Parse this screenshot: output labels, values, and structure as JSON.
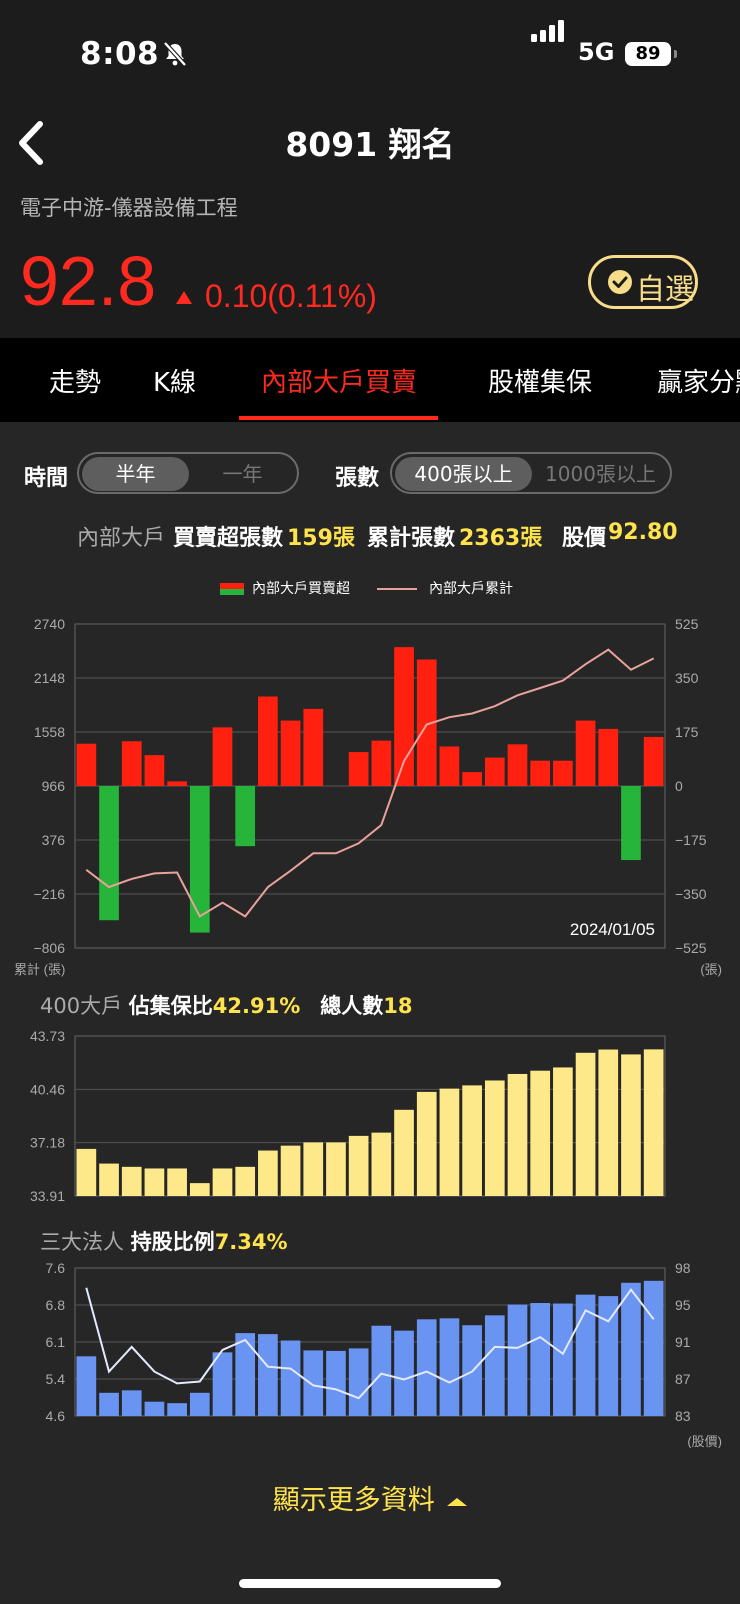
{
  "status_bar": {
    "time": "8:08",
    "network": "5G",
    "battery": "89"
  },
  "header": {
    "title": "8091 翔名",
    "category": "電子中游-儀器設備工程"
  },
  "quote": {
    "price": "92.8",
    "change": "0.10(0.11%)",
    "watch_label": "自選",
    "up_color": "#ff2a1f",
    "accent": "#f7dc8a"
  },
  "tabs": [
    {
      "label": "走勢",
      "active": false
    },
    {
      "label": "K線",
      "active": false
    },
    {
      "label": "內部大戶買賣",
      "active": true
    },
    {
      "label": "股權集保",
      "active": false
    },
    {
      "label": "贏家分點",
      "active": false
    }
  ],
  "filters": {
    "time_label": "時間",
    "time_options": [
      "半年",
      "一年"
    ],
    "time_selected": "半年",
    "lots_label": "張數",
    "lots_options": [
      "400張以上",
      "1000張以上"
    ],
    "lots_selected": "400張以上"
  },
  "summary": {
    "insider_label": "內部大戶",
    "net_label": "買賣超張數",
    "net_value": "159張",
    "cum_label": "累計張數",
    "cum_value": "2363張",
    "price_label": "股價",
    "price_value": "92.80"
  },
  "chart_data": [
    {
      "type": "bar",
      "legend": [
        "內部大戶買賣超",
        "內部大戶累計"
      ],
      "left_axis_ticks": [
        "2740",
        "2148",
        "1558",
        "966",
        "376",
        "−216",
        "−806"
      ],
      "left_axis_label": "累計 (張)",
      "right_axis_ticks": [
        "525",
        "350",
        "175",
        "0",
        "−175",
        "−350",
        "−525"
      ],
      "right_axis_label": "(張)",
      "ylim_left": [
        -806,
        2740
      ],
      "ylim_right": [
        -525,
        525
      ],
      "date_label": "2024/01/05",
      "series": [
        {
          "name": "內部大戶買賣超",
          "axis": "right",
          "colors": {
            "positive": "#ff2010",
            "negative": "#26b43a"
          },
          "values": [
            137,
            -435,
            145,
            100,
            15,
            -475,
            190,
            -195,
            290,
            212,
            250,
            0,
            110,
            147,
            450,
            410,
            128,
            45,
            92,
            135,
            82,
            82,
            212,
            185,
            -240,
            159
          ]
        },
        {
          "name": "內部大戶累計",
          "axis": "left",
          "color": "#e9a29b",
          "values": [
            50,
            -140,
            -50,
            10,
            20,
            -460,
            -310,
            -460,
            -140,
            40,
            230,
            230,
            340,
            540,
            1240,
            1640,
            1720,
            1760,
            1840,
            1960,
            2040,
            2120,
            2300,
            2460,
            2240,
            2363
          ]
        }
      ]
    },
    {
      "type": "bar",
      "title": "400大戶",
      "stats": [
        {
          "label": "佔集保比",
          "value": "42.91%"
        },
        {
          "label": "總人數",
          "value": "18"
        }
      ],
      "axis_ticks": [
        "43.73",
        "40.46",
        "37.18",
        "33.91"
      ],
      "ylim": [
        33.91,
        43.73
      ],
      "color": "#fde98a",
      "values": [
        36.8,
        35.9,
        35.7,
        35.6,
        35.6,
        34.7,
        35.6,
        35.7,
        36.7,
        37.0,
        37.2,
        37.2,
        37.6,
        37.8,
        39.2,
        40.3,
        40.5,
        40.7,
        41.0,
        41.4,
        41.6,
        41.8,
        42.7,
        42.9,
        42.6,
        42.91
      ]
    },
    {
      "type": "bar",
      "title": "三大法人",
      "stats": [
        {
          "label": "持股比例",
          "value": "7.34%"
        }
      ],
      "left_axis_ticks": [
        "7.6",
        "6.8",
        "6.1",
        "5.4",
        "4.6"
      ],
      "right_axis_ticks": [
        "98",
        "95",
        "91",
        "87",
        "83"
      ],
      "right_axis_label": "(股價)",
      "ylim_left": [
        4.6,
        7.6
      ],
      "ylim_right": [
        83,
        98
      ],
      "bar_color": "#6a94f2",
      "line_color": "#e3eaff",
      "series": [
        {
          "name": "持股比例",
          "axis": "left",
          "values": [
            5.81,
            5.07,
            5.12,
            4.89,
            4.86,
            5.07,
            5.89,
            6.28,
            6.26,
            6.13,
            5.93,
            5.92,
            5.97,
            6.43,
            6.33,
            6.56,
            6.58,
            6.44,
            6.64,
            6.86,
            6.89,
            6.88,
            7.06,
            7.03,
            7.3,
            7.34
          ]
        },
        {
          "name": "股價",
          "axis": "right",
          "values": [
            96.0,
            87.5,
            90.0,
            87.5,
            86.3,
            86.5,
            89.7,
            90.7,
            88.0,
            87.8,
            86.1,
            85.7,
            84.8,
            87.3,
            86.7,
            87.5,
            86.4,
            87.5,
            90.0,
            89.9,
            91.0,
            89.3,
            93.7,
            92.6,
            95.8,
            92.8
          ]
        }
      ]
    }
  ],
  "show_more": "顯示更多資料"
}
